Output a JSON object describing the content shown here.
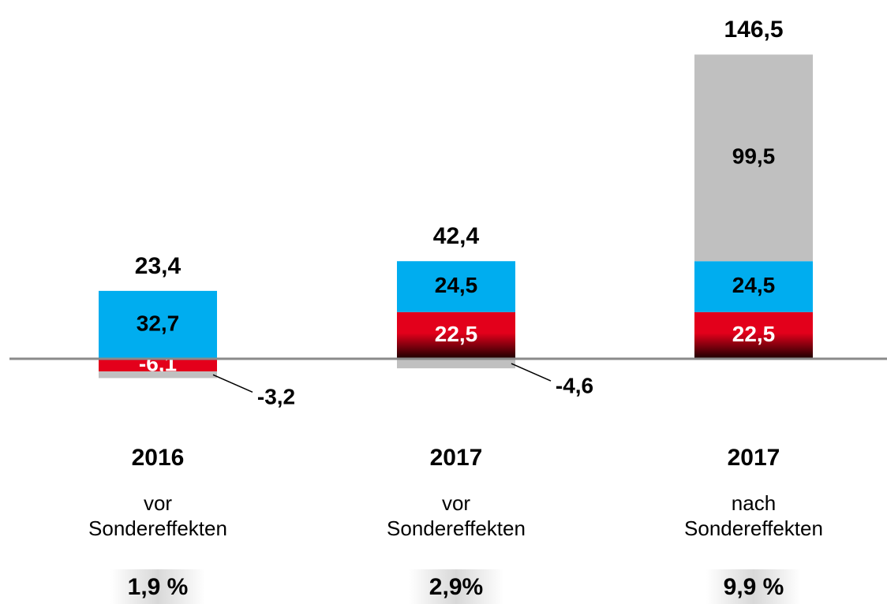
{
  "chart_data": {
    "type": "stacked_bar",
    "categories": [
      "2016",
      "2017",
      "2017"
    ],
    "subcategories": [
      [
        "vor",
        "Sondereffekten"
      ],
      [
        "vor",
        "Sondereffekten"
      ],
      [
        "nach",
        "Sondereffekten"
      ]
    ],
    "margin_labels": [
      "1,9 %",
      "2,9%",
      "9,9 %"
    ],
    "series": [
      {
        "color": "#e3001b",
        "values": [
          -6.1,
          22.5,
          22.5
        ],
        "value_labels": [
          "-6,1",
          "22,5",
          "22,5"
        ]
      },
      {
        "color": "#00adef",
        "values": [
          32.7,
          24.5,
          24.5
        ],
        "value_labels": [
          "32,7",
          "24,5",
          "24,5"
        ]
      },
      {
        "color": "#c0c0c0",
        "values": [
          -3.2,
          -4.6,
          99.5
        ],
        "value_labels": [
          "-3,2",
          "-4,6",
          "99,5"
        ]
      }
    ],
    "totals": [
      23.4,
      42.4,
      146.5
    ],
    "total_labels": [
      "23,4",
      "42,4",
      "146,5"
    ],
    "ylim": [
      -10,
      150
    ]
  }
}
